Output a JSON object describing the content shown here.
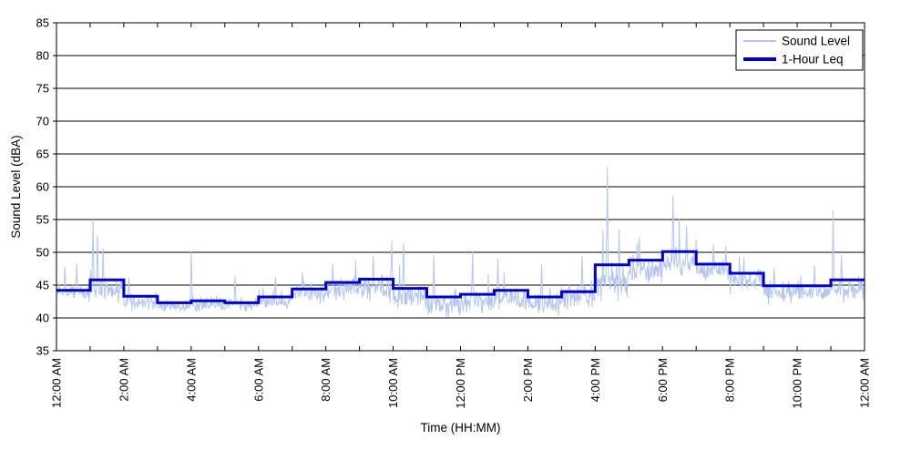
{
  "chart_data": {
    "type": "line",
    "title": "",
    "xlabel": "Time (HH:MM)",
    "ylabel": "Sound Level (dBA)",
    "ylim": [
      35,
      85
    ],
    "yticks": [
      35,
      40,
      45,
      50,
      55,
      60,
      65,
      70,
      75,
      80,
      85
    ],
    "x_hours": 24,
    "xtick_interval_hours": 2,
    "minor_tick_every_hours": 1,
    "xtick_labels": [
      "12:00 AM",
      "2:00 AM",
      "4:00 AM",
      "6:00 AM",
      "8:00 AM",
      "10:00 AM",
      "12:00 PM",
      "2:00 PM",
      "4:00 PM",
      "6:00 PM",
      "8:00 PM",
      "10:00 PM",
      "12:00 AM"
    ],
    "grid": {
      "horizontal": true,
      "vertical": false,
      "color": "#000000"
    },
    "background": "#ffffff",
    "axis_color": "#000000",
    "legend": {
      "position": "top-right",
      "border_color": "#000000",
      "fill": "#ffffff",
      "entries": [
        {
          "label": "Sound Level",
          "color": "#b3c6f2",
          "line_width": 2
        },
        {
          "label": "1-Hour Leq",
          "color": "#0000cd",
          "line_width": 4
        }
      ]
    },
    "series": [
      {
        "name": "Sound Level",
        "style": "noisy-trace",
        "color": "#b3c6f2",
        "samples_per_hour": 60,
        "hourly_base_dba": [
          43.8,
          44.2,
          42.5,
          41.8,
          42.0,
          42.0,
          42.6,
          43.8,
          44.5,
          44.6,
          43.2,
          42.0,
          42.2,
          43.0,
          42.2,
          43.2,
          45.3,
          47.4,
          48.5,
          47.2,
          45.8,
          43.9,
          43.9,
          44.4
        ],
        "hourly_noise_amp": [
          0.9,
          1.3,
          0.9,
          0.7,
          0.8,
          0.7,
          0.8,
          1.1,
          1.2,
          1.4,
          1.5,
          1.3,
          1.4,
          1.3,
          1.2,
          1.3,
          1.8,
          1.5,
          1.4,
          1.2,
          1.2,
          1.1,
          1.1,
          1.2
        ],
        "spikes": [
          [
            0.25,
            47.8
          ],
          [
            0.6,
            48.3
          ],
          [
            1.08,
            55.0
          ],
          [
            1.22,
            52.6
          ],
          [
            1.38,
            50.6
          ],
          [
            2.15,
            46.2
          ],
          [
            4.0,
            50.2
          ],
          [
            5.3,
            46.4
          ],
          [
            6.5,
            46.3
          ],
          [
            7.3,
            47.0
          ],
          [
            8.2,
            48.2
          ],
          [
            9.4,
            49.5
          ],
          [
            9.95,
            51.7
          ],
          [
            10.3,
            51.4
          ],
          [
            11.2,
            49.6
          ],
          [
            12.35,
            50.1
          ],
          [
            13.1,
            49.0
          ],
          [
            14.4,
            48.2
          ],
          [
            15.6,
            49.5
          ],
          [
            16.35,
            63.0
          ],
          [
            16.7,
            53.5
          ],
          [
            17.3,
            52.3
          ],
          [
            18.3,
            58.7
          ],
          [
            18.7,
            54.0
          ],
          [
            19.5,
            51.2
          ],
          [
            20.4,
            49.2
          ],
          [
            21.3,
            47.6
          ],
          [
            22.5,
            48.0
          ],
          [
            23.05,
            56.4
          ],
          [
            23.3,
            49.6
          ]
        ],
        "min_dba": 40.1
      },
      {
        "name": "1-Hour Leq",
        "style": "step",
        "color": "#0000cd",
        "hourly_leq_dba": [
          44.2,
          45.8,
          43.3,
          42.3,
          42.6,
          42.3,
          43.2,
          44.4,
          45.4,
          45.9,
          44.5,
          43.2,
          43.6,
          44.2,
          43.2,
          44.0,
          48.1,
          48.8,
          50.1,
          48.2,
          46.8,
          44.9,
          44.9,
          45.8
        ]
      }
    ]
  }
}
